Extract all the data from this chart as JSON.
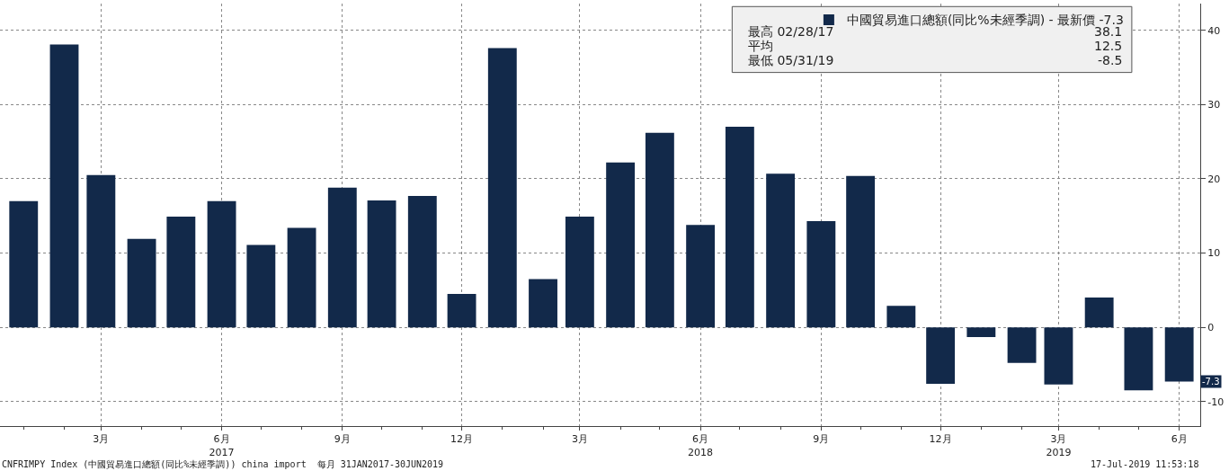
{
  "chart_data": {
    "type": "bar",
    "x": [
      "2017-01",
      "2017-02",
      "2017-03",
      "2017-04",
      "2017-05",
      "2017-06",
      "2017-07",
      "2017-08",
      "2017-09",
      "2017-10",
      "2017-11",
      "2017-12",
      "2018-01",
      "2018-02",
      "2018-03",
      "2018-04",
      "2018-05",
      "2018-06",
      "2018-07",
      "2018-08",
      "2018-09",
      "2018-10",
      "2018-11",
      "2018-12",
      "2019-01",
      "2019-02",
      "2019-03",
      "2019-04",
      "2019-05",
      "2019-06"
    ],
    "series": [
      {
        "name": "中國貿易進口總額(同比%未經季調) - 最新價 -7.3",
        "color": "#12294a",
        "values": [
          17.0,
          38.1,
          20.5,
          11.9,
          14.9,
          17.0,
          11.1,
          13.4,
          18.8,
          17.1,
          17.7,
          4.5,
          37.6,
          6.5,
          14.9,
          22.2,
          26.2,
          13.8,
          27.0,
          20.7,
          14.3,
          20.4,
          2.9,
          -7.6,
          -1.3,
          -4.8,
          -7.7,
          4.0,
          -8.5,
          -7.3
        ]
      }
    ],
    "xlim": [
      "2016-12-14",
      "2019-06-17"
    ],
    "xticks": [
      {
        "value": "2017-03",
        "label": "3月"
      },
      {
        "value": "2017-06",
        "label": "6月\n2017"
      },
      {
        "value": "2017-09",
        "label": "9月"
      },
      {
        "value": "2017-12",
        "label": "12月"
      },
      {
        "value": "2018-03",
        "label": "3月"
      },
      {
        "value": "2018-06",
        "label": "6月\n2018"
      },
      {
        "value": "2018-09",
        "label": "9月"
      },
      {
        "value": "2018-12",
        "label": "12月"
      },
      {
        "value": "2019-03",
        "label": "3月\n2019"
      },
      {
        "value": "2019-06",
        "label": "6月"
      }
    ],
    "ylim": [
      -13.3,
      43.6
    ],
    "yticks": [
      -10,
      0,
      10,
      20,
      30,
      40
    ],
    "grid": true,
    "legend": "top right",
    "annotations": [
      "最高 02/28/17 38.1",
      "平均 12.5",
      "最低 05/31/19 -8.5",
      {
        "text": "-7.3",
        "y": -7.3
      },
      "CNFRIMPY Index (中國貿易進口總額(同比%未經季調)) china import  每月 31JAN2017-30JUN2019",
      "17-Jul-2019 11:53:18"
    ]
  }
}
